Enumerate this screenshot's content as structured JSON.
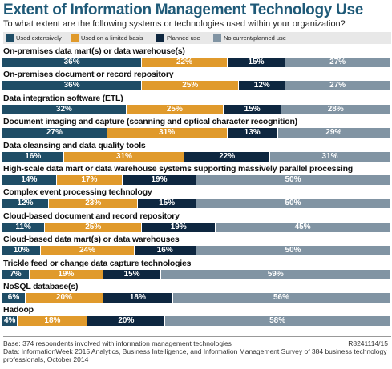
{
  "title": "Extent of Information Management Technology Use",
  "subtitle": "To what extent are the following systems or technologies used within your organization?",
  "colors": {
    "extensive": "#1f4d66",
    "limited": "#e09a2c",
    "planned": "#0e2740",
    "none": "#8194a3",
    "title": "#1f5a78"
  },
  "legend": [
    {
      "label": "Used extensively",
      "color": "#1f4d66"
    },
    {
      "label": "Used on a limited basis",
      "color": "#e09a2c"
    },
    {
      "label": "Planned use",
      "color": "#0e2740"
    },
    {
      "label": "No current/planned use",
      "color": "#8194a3"
    }
  ],
  "chart_data": {
    "type": "bar",
    "stacked": true,
    "orientation": "horizontal",
    "unit": "%",
    "categories": [
      "On-premises data mart(s) or data warehouse(s)",
      "On-premises document or record repository",
      "Data integration software (ETL)",
      "Document imaging and capture (scanning and optical character recognition)",
      "Data cleansing and data quality tools",
      "High-scale data mart or data warehouse systems supporting massively parallel processing",
      "Complex event processing technology",
      "Cloud-based document and record repository",
      "Cloud-based data mart(s) or data warehouses",
      "Trickle feed or change data capture technologies",
      "NoSQL database(s)",
      "Hadoop"
    ],
    "series": [
      {
        "name": "Used extensively",
        "values": [
          36,
          36,
          32,
          27,
          16,
          14,
          12,
          11,
          10,
          7,
          6,
          4
        ]
      },
      {
        "name": "Used on a limited basis",
        "values": [
          22,
          25,
          25,
          31,
          31,
          17,
          23,
          25,
          24,
          19,
          20,
          18
        ]
      },
      {
        "name": "Planned use",
        "values": [
          15,
          12,
          15,
          13,
          22,
          19,
          15,
          19,
          16,
          15,
          18,
          20
        ]
      },
      {
        "name": "No current/planned use",
        "values": [
          27,
          27,
          28,
          29,
          31,
          50,
          50,
          45,
          50,
          59,
          56,
          58
        ]
      }
    ],
    "xlim": [
      0,
      100
    ],
    "legend_position": "top"
  },
  "footer": {
    "base": "Base: 374 respondents involved with information management technologies",
    "data": "Data: InformationWeek 2015 Analytics, Business Intelligence, and Information Management Survey of 384 business technology",
    "data2": "professionals, October 2014",
    "code": "R8241114/15"
  }
}
